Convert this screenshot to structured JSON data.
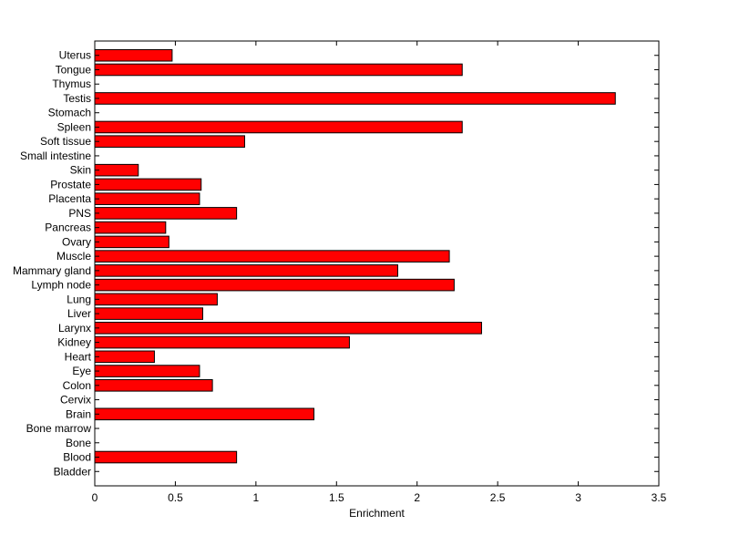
{
  "chart_data": {
    "type": "bar",
    "orientation": "horizontal",
    "categories": [
      "Bladder",
      "Blood",
      "Bone",
      "Bone marrow",
      "Brain",
      "Cervix",
      "Colon",
      "Eye",
      "Heart",
      "Kidney",
      "Larynx",
      "Liver",
      "Lung",
      "Lymph node",
      "Mammary gland",
      "Muscle",
      "Ovary",
      "Pancreas",
      "PNS",
      "Placenta",
      "Prostate",
      "Skin",
      "Small intestine",
      "Soft tissue",
      "Spleen",
      "Stomach",
      "Testis",
      "Thymus",
      "Tongue",
      "Uterus"
    ],
    "values": [
      0,
      0.88,
      0,
      0,
      1.36,
      0,
      0.73,
      0.65,
      0.37,
      1.58,
      2.4,
      0.67,
      0.76,
      2.23,
      1.88,
      2.2,
      0.46,
      0.44,
      0.88,
      0.65,
      0.66,
      0.27,
      0,
      0.93,
      2.28,
      0,
      3.23,
      0,
      2.28,
      0.48
    ],
    "xlabel": "Enrichment",
    "ylabel": "",
    "xlim": [
      0,
      3.5
    ],
    "xticks": [
      0,
      0.5,
      1,
      1.5,
      2,
      2.5,
      3,
      3.5
    ],
    "xtick_labels": [
      "0",
      "0.5",
      "1",
      "1.5",
      "2",
      "2.5",
      "3",
      "3.5"
    ],
    "bar_color": "#ff0000",
    "bar_edge_color": "#000000",
    "grid": false
  }
}
